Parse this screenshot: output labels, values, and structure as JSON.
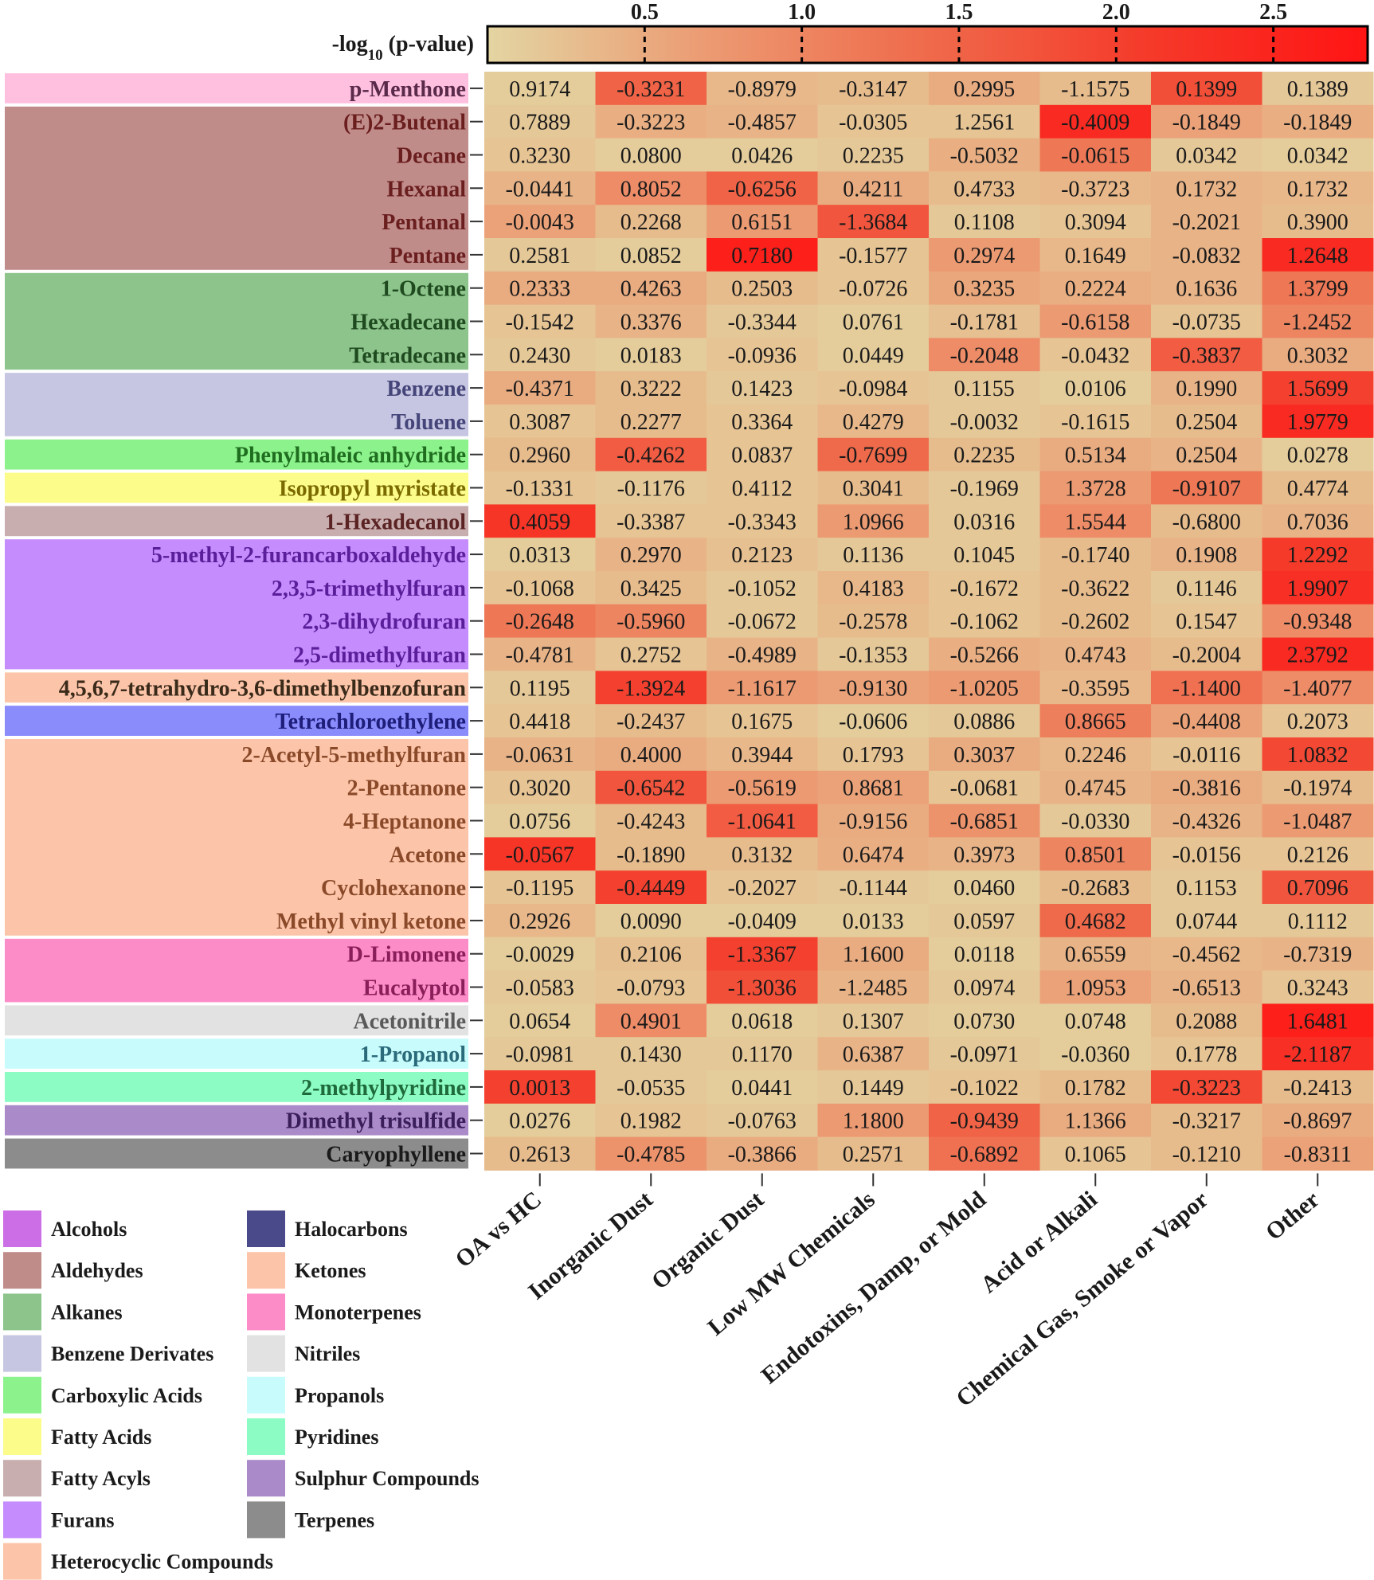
{
  "chart_data": {
    "type": "heatmap",
    "colorbar": {
      "title": "-log",
      "title_sub": "10",
      "title_rest": " (p-value)",
      "ticks": [
        "0.5",
        "1.0",
        "1.5",
        "2.0",
        "2.5"
      ],
      "tick_values": [
        0.5,
        1.0,
        1.5,
        2.0,
        2.5
      ],
      "range": [
        0,
        2.8
      ],
      "colors": [
        "#e3d5a2",
        "#ec9a72",
        "#ef6a4b",
        "#f53a2a",
        "#ff1414"
      ]
    },
    "columns": [
      "OA vs HC",
      "Inorganic Dust",
      "Organic Dust",
      "Low MW Chemicals",
      "Endotoxins, Damp, or Mold",
      "Acid or Alkali",
      "Chemical Gas, Smoke or Vapor",
      "Other"
    ],
    "rows": [
      {
        "label": "p-Menthone",
        "group": "Alcohols",
        "values": [
          "0.9174",
          "-0.3231",
          "-0.8979",
          "-0.3147",
          "0.2995",
          "-1.1575",
          "0.1399",
          "0.1389"
        ],
        "intensity": [
          0.1,
          1.5,
          0.35,
          0.3,
          0.5,
          0.3,
          1.8,
          0.15
        ]
      },
      {
        "label": "(E)2-Butenal",
        "group": "Aldehydes",
        "values": [
          "0.7889",
          "-0.3223",
          "-0.4857",
          "-0.0305",
          "1.2561",
          "-0.4009",
          "-0.1849",
          "-0.1849"
        ],
        "intensity": [
          0.15,
          0.45,
          0.4,
          0.2,
          0.2,
          2.4,
          0.6,
          0.45
        ]
      },
      {
        "label": "Decane",
        "group": "Aldehydes",
        "values": [
          "0.3230",
          "0.0800",
          "0.0426",
          "0.2235",
          "-0.5032",
          "-0.0615",
          "0.0342",
          "0.0342"
        ],
        "intensity": [
          0.2,
          0.1,
          0.1,
          0.15,
          0.45,
          1.2,
          0.15,
          0.1
        ]
      },
      {
        "label": "Hexanal",
        "group": "Aldehydes",
        "values": [
          "-0.0441",
          "0.8052",
          "-0.6256",
          "0.4211",
          "0.4733",
          "-0.3723",
          "0.1732",
          "0.1732"
        ],
        "intensity": [
          0.4,
          0.9,
          1.5,
          0.5,
          0.3,
          0.35,
          0.4,
          0.35
        ]
      },
      {
        "label": "Pentanal",
        "group": "Aldehydes",
        "values": [
          "-0.0043",
          "0.2268",
          "0.6151",
          "-1.3684",
          "0.1108",
          "0.3094",
          "-0.2021",
          "0.3900"
        ],
        "intensity": [
          0.6,
          0.3,
          0.7,
          1.7,
          0.15,
          0.2,
          0.4,
          0.3
        ]
      },
      {
        "label": "Pentane",
        "group": "Aldehydes",
        "values": [
          "0.2581",
          "0.0852",
          "0.7180",
          "-0.1577",
          "0.2974",
          "0.1649",
          "-0.0832",
          "1.2648"
        ],
        "intensity": [
          0.15,
          0.1,
          2.6,
          0.2,
          0.7,
          0.35,
          0.4,
          2.4
        ]
      },
      {
        "label": "1-Octene",
        "group": "Alkanes",
        "values": [
          "0.2333",
          "0.4263",
          "0.2503",
          "-0.0726",
          "0.3235",
          "0.2224",
          "0.1636",
          "1.3799"
        ],
        "intensity": [
          0.5,
          0.5,
          0.3,
          0.2,
          0.55,
          0.45,
          0.4,
          1.2
        ]
      },
      {
        "label": "Hexadecane",
        "group": "Alkanes",
        "values": [
          "-0.1542",
          "0.3376",
          "-0.3344",
          "0.0761",
          "-0.1781",
          "-0.6158",
          "-0.0735",
          "-1.2452"
        ],
        "intensity": [
          0.2,
          0.4,
          0.15,
          0.1,
          0.25,
          0.7,
          0.2,
          1.0
        ]
      },
      {
        "label": "Tetradecane",
        "group": "Alkanes",
        "values": [
          "0.2430",
          "0.0183",
          "-0.0936",
          "0.0449",
          "-0.2048",
          "-0.0432",
          "-0.3837",
          "0.3032"
        ],
        "intensity": [
          0.15,
          0.1,
          0.2,
          0.1,
          0.9,
          0.2,
          1.6,
          0.5
        ]
      },
      {
        "label": "Benzene",
        "group": "Benzene Derivates",
        "values": [
          "-0.4371",
          "0.3222",
          "0.1423",
          "-0.0984",
          "0.1155",
          "0.0106",
          "0.1990",
          "1.5699"
        ],
        "intensity": [
          0.5,
          0.3,
          0.15,
          0.2,
          0.15,
          0.1,
          0.4,
          2.0
        ]
      },
      {
        "label": "Toluene",
        "group": "Benzene Derivates",
        "values": [
          "0.3087",
          "0.2277",
          "0.3364",
          "0.4279",
          "-0.0032",
          "-0.1615",
          "0.2504",
          "1.9779"
        ],
        "intensity": [
          0.2,
          0.3,
          0.2,
          0.35,
          0.15,
          0.2,
          0.3,
          2.4
        ]
      },
      {
        "label": "Phenylmaleic anhydride",
        "group": "Carboxylic Acids",
        "values": [
          "0.2960",
          "-0.4262",
          "0.0837",
          "-0.7699",
          "0.2235",
          "0.5134",
          "0.2504",
          "0.0278"
        ],
        "intensity": [
          0.3,
          1.6,
          0.2,
          1.4,
          0.3,
          0.5,
          0.4,
          0.1
        ]
      },
      {
        "label": "Isopropyl myristate",
        "group": "Fatty Acids",
        "values": [
          "-0.1331",
          "-0.1176",
          "0.4112",
          "0.3041",
          "-0.1969",
          "1.3728",
          "-0.9107",
          "0.4774"
        ],
        "intensity": [
          0.2,
          0.15,
          0.2,
          0.3,
          0.15,
          0.7,
          1.2,
          0.3
        ]
      },
      {
        "label": "1-Hexadecanol",
        "group": "Fatty Acyls",
        "values": [
          "0.4059",
          "-0.3387",
          "-0.3343",
          "1.0966",
          "0.0316",
          "1.5544",
          "-0.6800",
          "0.7036"
        ],
        "intensity": [
          2.2,
          0.2,
          0.2,
          0.7,
          0.15,
          0.9,
          0.3,
          0.4
        ]
      },
      {
        "label": "5-methyl-2-furancarboxaldehyde",
        "group": "Furans",
        "values": [
          "0.0313",
          "0.2970",
          "0.2123",
          "0.1136",
          "0.1045",
          "-0.1740",
          "0.1908",
          "1.2292"
        ],
        "intensity": [
          0.1,
          0.4,
          0.25,
          0.15,
          0.15,
          0.3,
          0.4,
          2.1
        ]
      },
      {
        "label": "2,3,5-trimethylfuran",
        "group": "Furans",
        "values": [
          "-0.1068",
          "0.3425",
          "-0.1052",
          "0.4183",
          "-0.1672",
          "-0.3622",
          "0.1146",
          "1.9907"
        ],
        "intensity": [
          0.2,
          0.3,
          0.15,
          0.35,
          0.2,
          0.3,
          0.15,
          2.3
        ]
      },
      {
        "label": "2,3-dihydrofuran",
        "group": "Furans",
        "values": [
          "-0.2648",
          "-0.5960",
          "-0.0672",
          "-0.2578",
          "-0.1062",
          "-0.2602",
          "0.1547",
          "-0.9348"
        ],
        "intensity": [
          1.2,
          1.0,
          0.15,
          0.3,
          0.2,
          0.3,
          0.2,
          0.9
        ]
      },
      {
        "label": "2,5-dimethylfuran",
        "group": "Furans",
        "values": [
          "-0.4781",
          "0.2752",
          "-0.4989",
          "-0.1353",
          "-0.5266",
          "0.4743",
          "-0.2004",
          "2.3792"
        ],
        "intensity": [
          0.4,
          0.2,
          0.4,
          0.15,
          0.45,
          0.4,
          0.3,
          2.4
        ]
      },
      {
        "label": "4,5,6,7-tetrahydro-3,6-dimethylbenzofuran",
        "group": "Heterocyclic Compounds",
        "values": [
          "0.1195",
          "-1.3924",
          "-1.1617",
          "-0.9130",
          "-1.0205",
          "-0.3595",
          "-1.1400",
          "-1.4077"
        ],
        "intensity": [
          0.15,
          2.0,
          0.7,
          0.6,
          0.7,
          0.35,
          1.3,
          0.9
        ]
      },
      {
        "label": "Tetrachloroethylene",
        "group": "Halocarbons",
        "values": [
          "0.4418",
          "-0.2437",
          "0.1675",
          "-0.0606",
          "0.0886",
          "0.8665",
          "-0.4408",
          "0.2073"
        ],
        "intensity": [
          0.2,
          0.3,
          0.2,
          0.1,
          0.15,
          1.1,
          0.6,
          0.2
        ]
      },
      {
        "label": "2-Acetyl-5-methylfuran",
        "group": "Ketones",
        "values": [
          "-0.0631",
          "0.4000",
          "0.3944",
          "0.1793",
          "0.3037",
          "0.2246",
          "-0.0116",
          "1.0832"
        ],
        "intensity": [
          0.4,
          0.5,
          0.35,
          0.2,
          0.5,
          0.35,
          0.2,
          1.9
        ]
      },
      {
        "label": "2-Pentanone",
        "group": "Ketones",
        "values": [
          "0.3020",
          "-0.6542",
          "-0.5619",
          "0.8681",
          "-0.0681",
          "0.4745",
          "-0.3816",
          "-0.1974"
        ],
        "intensity": [
          0.2,
          1.7,
          0.7,
          0.6,
          0.2,
          0.4,
          0.5,
          0.3
        ]
      },
      {
        "label": "4-Heptanone",
        "group": "Ketones",
        "values": [
          "0.0756",
          "-0.4243",
          "-1.0641",
          "-0.9156",
          "-0.6851",
          "-0.0330",
          "-0.4326",
          "-1.0487"
        ],
        "intensity": [
          0.1,
          0.3,
          1.6,
          0.5,
          0.8,
          0.15,
          0.4,
          0.7
        ]
      },
      {
        "label": "Acetone",
        "group": "Ketones",
        "values": [
          "-0.0567",
          "-0.1890",
          "0.3132",
          "0.6474",
          "0.3973",
          "0.8501",
          "-0.0156",
          "0.2126"
        ],
        "intensity": [
          2.2,
          0.3,
          0.3,
          0.45,
          0.4,
          1.0,
          0.2,
          0.2
        ]
      },
      {
        "label": "Cyclohexanone",
        "group": "Ketones",
        "values": [
          "-0.1195",
          "-0.4449",
          "-0.2027",
          "-0.1144",
          "0.0460",
          "-0.2683",
          "0.1153",
          "0.7096"
        ],
        "intensity": [
          0.2,
          2.0,
          0.2,
          0.15,
          0.1,
          0.3,
          0.15,
          1.7
        ]
      },
      {
        "label": "Methyl vinyl ketone",
        "group": "Ketones",
        "values": [
          "0.2926",
          "0.0090",
          "-0.0409",
          "0.0133",
          "0.0597",
          "0.4682",
          "0.0744",
          "0.1112"
        ],
        "intensity": [
          0.35,
          0.1,
          0.1,
          0.1,
          0.15,
          1.4,
          0.15,
          0.15
        ]
      },
      {
        "label": "D-Limonene",
        "group": "Monoterpenes",
        "values": [
          "-0.0029",
          "0.2106",
          "-1.3367",
          "1.1600",
          "0.0118",
          "0.6559",
          "-0.4562",
          "-0.7319"
        ],
        "intensity": [
          0.1,
          0.25,
          2.0,
          0.5,
          0.1,
          0.4,
          0.35,
          0.4
        ]
      },
      {
        "label": "Eucalyptol",
        "group": "Monoterpenes",
        "values": [
          "-0.0583",
          "-0.0793",
          "-1.3036",
          "-1.2485",
          "0.0974",
          "1.0953",
          "-0.6513",
          "0.3243"
        ],
        "intensity": [
          0.15,
          0.2,
          1.8,
          0.4,
          0.15,
          0.6,
          0.4,
          0.2
        ]
      },
      {
        "label": "Acetonitrile",
        "group": "Nitriles",
        "values": [
          "0.0654",
          "0.4901",
          "0.0618",
          "0.1307",
          "0.0730",
          "0.0748",
          "0.2088",
          "1.6481"
        ],
        "intensity": [
          0.1,
          0.9,
          0.1,
          0.15,
          0.1,
          0.1,
          0.3,
          2.6
        ]
      },
      {
        "label": "1-Propanol",
        "group": "Propanols",
        "values": [
          "-0.0981",
          "0.1430",
          "0.1170",
          "0.6387",
          "-0.0971",
          "-0.0360",
          "0.1778",
          "-2.1187"
        ],
        "intensity": [
          0.15,
          0.15,
          0.15,
          0.4,
          0.15,
          0.1,
          0.2,
          2.3
        ]
      },
      {
        "label": "2-methylpyridine",
        "group": "Pyridines",
        "values": [
          "0.0013",
          "-0.0535",
          "0.0441",
          "0.1449",
          "-0.1022",
          "0.1782",
          "-0.3223",
          "-0.2413"
        ],
        "intensity": [
          2.0,
          0.15,
          0.1,
          0.15,
          0.2,
          0.3,
          1.9,
          0.3
        ]
      },
      {
        "label": "Dimethyl trisulfide",
        "group": "Sulphur Compounds",
        "values": [
          "0.0276",
          "0.1982",
          "-0.0763",
          "1.1800",
          "-0.9439",
          "1.1366",
          "-0.3217",
          "-0.8697"
        ],
        "intensity": [
          0.1,
          0.2,
          0.15,
          0.7,
          1.5,
          0.5,
          0.3,
          0.5
        ]
      },
      {
        "label": "Caryophyllene",
        "group": "Terpenes",
        "values": [
          "0.2613",
          "-0.4785",
          "-0.3866",
          "0.2571",
          "-0.6892",
          "0.1065",
          "-0.1210",
          "-0.8311"
        ],
        "intensity": [
          0.3,
          0.8,
          0.5,
          0.3,
          1.3,
          0.2,
          0.3,
          0.6
        ]
      }
    ],
    "groups": [
      {
        "name": "Alcohols",
        "color": "#ffc0e0",
        "text": "#5a2a4a",
        "legend_color": "#cc6ee6"
      },
      {
        "name": "Aldehydes",
        "color": "#c08c8a",
        "text": "#6a1e1e",
        "legend_color": "#c08c8a"
      },
      {
        "name": "Alkanes",
        "color": "#8cc48c",
        "text": "#1f4a1f",
        "legend_color": "#8cc48c"
      },
      {
        "name": "Benzene Derivates",
        "color": "#c6c6e2",
        "text": "#45457a",
        "legend_color": "#c6c6e2"
      },
      {
        "name": "Carboxylic Acids",
        "color": "#8cf28c",
        "text": "#1f6e1f",
        "legend_color": "#8cf28c"
      },
      {
        "name": "Fatty Acids",
        "color": "#fcfc8a",
        "text": "#7a6a00",
        "legend_color": "#fcfc8a"
      },
      {
        "name": "Fatty Acyls",
        "color": "#c8aeae",
        "text": "#5a2222",
        "legend_color": "#c8aeae"
      },
      {
        "name": "Furans",
        "color": "#c48cfc",
        "text": "#5a1e9a",
        "legend_color": "#c48cfc"
      },
      {
        "name": "Heterocyclic Compounds",
        "color": "#fcc4a8",
        "text": "#3a2a1a",
        "legend_color": "#fcc4a8"
      },
      {
        "name": "Halocarbons",
        "color": "#8a8cfc",
        "text": "#1e1e7a",
        "legend_color": "#4a4a8a"
      },
      {
        "name": "Ketones",
        "color": "#fcc4a8",
        "text": "#8a4a2a",
        "legend_color": "#fcc4a8"
      },
      {
        "name": "Monoterpenes",
        "color": "#fc8cc8",
        "text": "#8a1e5a",
        "legend_color": "#fc8cc8"
      },
      {
        "name": "Nitriles",
        "color": "#e2e2e2",
        "text": "#5a5a5a",
        "legend_color": "#e2e2e2"
      },
      {
        "name": "Propanols",
        "color": "#c8fcfc",
        "text": "#2a6a7a",
        "legend_color": "#c8fcfc"
      },
      {
        "name": "Pyridines",
        "color": "#8cfcc4",
        "text": "#1e6a3a",
        "legend_color": "#8cfcc4"
      },
      {
        "name": "Sulphur Compounds",
        "color": "#aa8ac8",
        "text": "#3a1e5a",
        "legend_color": "#aa8ac8"
      },
      {
        "name": "Terpenes",
        "color": "#8c8c8c",
        "text": "#1a1a1a",
        "legend_color": "#8c8c8c"
      }
    ],
    "legend": {
      "left": [
        "Alcohols",
        "Aldehydes",
        "Alkanes",
        "Benzene Derivates",
        "Carboxylic Acids",
        "Fatty Acids",
        "Fatty Acyls",
        "Furans",
        "Heterocyclic Compounds"
      ],
      "right": [
        "Halocarbons",
        "Ketones",
        "Monoterpenes",
        "Nitriles",
        "Propanols",
        "Pyridines",
        "Sulphur Compounds",
        "Terpenes"
      ]
    }
  }
}
